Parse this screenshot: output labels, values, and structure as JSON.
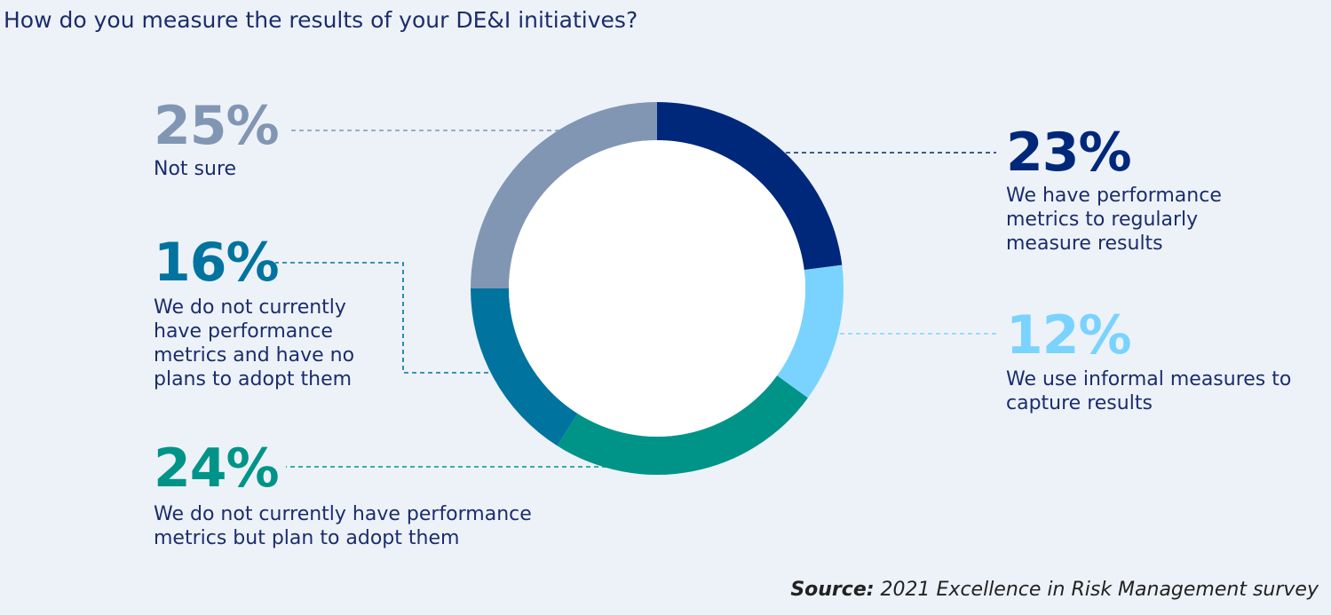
{
  "title": "How do you measure the results of your DE&I initiatives?",
  "source": {
    "label": "Source:",
    "text": "2021 Excellence in Risk Management survey"
  },
  "chart_data": {
    "type": "pie",
    "style": "donut",
    "title": "How do you measure the results of your DE&I initiatives?",
    "slices": [
      {
        "value": 23,
        "percent_label": "23%",
        "label": "We have performance metrics to regularly measure results",
        "color": "#00287a"
      },
      {
        "value": 12,
        "percent_label": "12%",
        "label": "We use informal measures to capture results",
        "color": "#7ad3ff"
      },
      {
        "value": 24,
        "percent_label": "24%",
        "label": "We do not currently have performance metrics but plan to adopt them",
        "color": "#009488"
      },
      {
        "value": 16,
        "percent_label": "16%",
        "label": "We do not currently have performance metrics and have no plans to adopt them",
        "color": "#00739f"
      },
      {
        "value": 25,
        "percent_label": "25%",
        "label": "Not sure",
        "color": "#8196b3"
      }
    ]
  }
}
